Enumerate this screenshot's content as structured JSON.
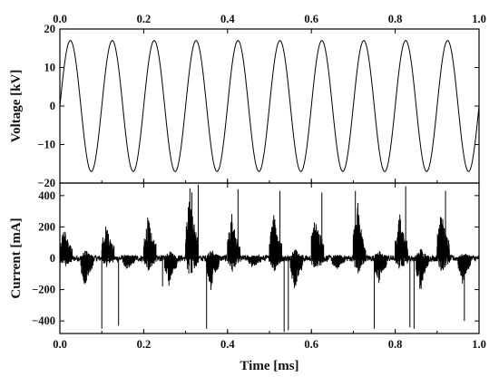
{
  "chart_data": [
    {
      "type": "line",
      "title": "",
      "xlabel": "",
      "ylabel": "Voltage [kV]",
      "xlim": [
        0,
        1.0
      ],
      "ylim": [
        -20,
        20
      ],
      "x_ticks": [
        "0.0",
        "0.2",
        "0.4",
        "0.6",
        "0.8",
        "1.0"
      ],
      "y_ticks": [
        "20",
        "10",
        "0",
        "−10",
        "−20"
      ],
      "x_tick_values": [
        0,
        0.2,
        0.4,
        0.6,
        0.8,
        1.0
      ],
      "y_tick_values": [
        20,
        10,
        0,
        -10,
        -20
      ],
      "x_ticks_top": true,
      "grid": false,
      "series": [
        {
          "amplitude_kV": 17,
          "frequency_kHz": 10,
          "phase_deg": 0,
          "peaks_ms": [
            0.025,
            0.125,
            0.225,
            0.325,
            0.425,
            0.525,
            0.625,
            0.725,
            0.825,
            0.925
          ],
          "troughs_ms": [
            0.075,
            0.175,
            0.275,
            0.375,
            0.475,
            0.575,
            0.675,
            0.775,
            0.875,
            0.975
          ]
        }
      ]
    },
    {
      "type": "line",
      "title": "",
      "xlabel": "Time [ms]",
      "ylabel": "Current [mA]",
      "xlim": [
        0,
        1.0
      ],
      "ylim": [
        -480,
        480
      ],
      "x_ticks": [
        "0.0",
        "0.2",
        "0.4",
        "0.6",
        "0.8",
        "1.0"
      ],
      "y_ticks": [
        "400",
        "200",
        "0",
        "−200",
        "−400"
      ],
      "x_tick_values": [
        0,
        0.2,
        0.4,
        0.6,
        0.8,
        1.0
      ],
      "y_tick_values": [
        400,
        200,
        0,
        -200,
        -400
      ],
      "grid": false,
      "series": [
        {
          "noise_band_mA": 20,
          "positive_bursts": [
            {
              "start_ms": 0.0,
              "end_ms": 0.03,
              "peak_mA": 230
            },
            {
              "start_ms": 0.1,
              "end_ms": 0.13,
              "peak_mA": 260
            },
            {
              "start_ms": 0.2,
              "end_ms": 0.23,
              "peak_mA": 290
            },
            {
              "start_ms": 0.3,
              "end_ms": 0.33,
              "peak_mA": 470
            },
            {
              "start_ms": 0.4,
              "end_ms": 0.43,
              "peak_mA": 300
            },
            {
              "start_ms": 0.5,
              "end_ms": 0.53,
              "peak_mA": 310
            },
            {
              "start_ms": 0.6,
              "end_ms": 0.63,
              "peak_mA": 330
            },
            {
              "start_ms": 0.7,
              "end_ms": 0.73,
              "peak_mA": 380
            },
            {
              "start_ms": 0.8,
              "end_ms": 0.83,
              "peak_mA": 320
            },
            {
              "start_ms": 0.9,
              "end_ms": 0.93,
              "peak_mA": 330
            }
          ],
          "negative_bursts": [
            {
              "start_ms": 0.05,
              "end_ms": 0.08,
              "peak_mA": -200
            },
            {
              "start_ms": 0.15,
              "end_ms": 0.18,
              "peak_mA": -90
            },
            {
              "start_ms": 0.25,
              "end_ms": 0.28,
              "peak_mA": -180
            },
            {
              "start_ms": 0.35,
              "end_ms": 0.38,
              "peak_mA": -210
            },
            {
              "start_ms": 0.45,
              "end_ms": 0.48,
              "peak_mA": -80
            },
            {
              "start_ms": 0.55,
              "end_ms": 0.58,
              "peak_mA": -220
            },
            {
              "start_ms": 0.65,
              "end_ms": 0.68,
              "peak_mA": -90
            },
            {
              "start_ms": 0.75,
              "end_ms": 0.78,
              "peak_mA": -170
            },
            {
              "start_ms": 0.85,
              "end_ms": 0.88,
              "peak_mA": -230
            },
            {
              "start_ms": 0.95,
              "end_ms": 0.98,
              "peak_mA": -180
            }
          ],
          "large_spikes": [
            {
              "x_ms": 0.1,
              "y_mA": -450
            },
            {
              "x_ms": 0.14,
              "y_mA": -430
            },
            {
              "x_ms": 0.245,
              "y_mA": -180
            },
            {
              "x_ms": 0.315,
              "y_mA": 420
            },
            {
              "x_ms": 0.33,
              "y_mA": 470
            },
            {
              "x_ms": 0.35,
              "y_mA": -450
            },
            {
              "x_ms": 0.425,
              "y_mA": 440
            },
            {
              "x_ms": 0.525,
              "y_mA": 430
            },
            {
              "x_ms": 0.535,
              "y_mA": -470
            },
            {
              "x_ms": 0.545,
              "y_mA": -460
            },
            {
              "x_ms": 0.625,
              "y_mA": 420
            },
            {
              "x_ms": 0.705,
              "y_mA": 430
            },
            {
              "x_ms": 0.75,
              "y_mA": -450
            },
            {
              "x_ms": 0.825,
              "y_mA": 460
            },
            {
              "x_ms": 0.835,
              "y_mA": -440
            },
            {
              "x_ms": 0.845,
              "y_mA": -450
            },
            {
              "x_ms": 0.92,
              "y_mA": 430
            },
            {
              "x_ms": 0.965,
              "y_mA": -400
            }
          ]
        }
      ]
    }
  ]
}
